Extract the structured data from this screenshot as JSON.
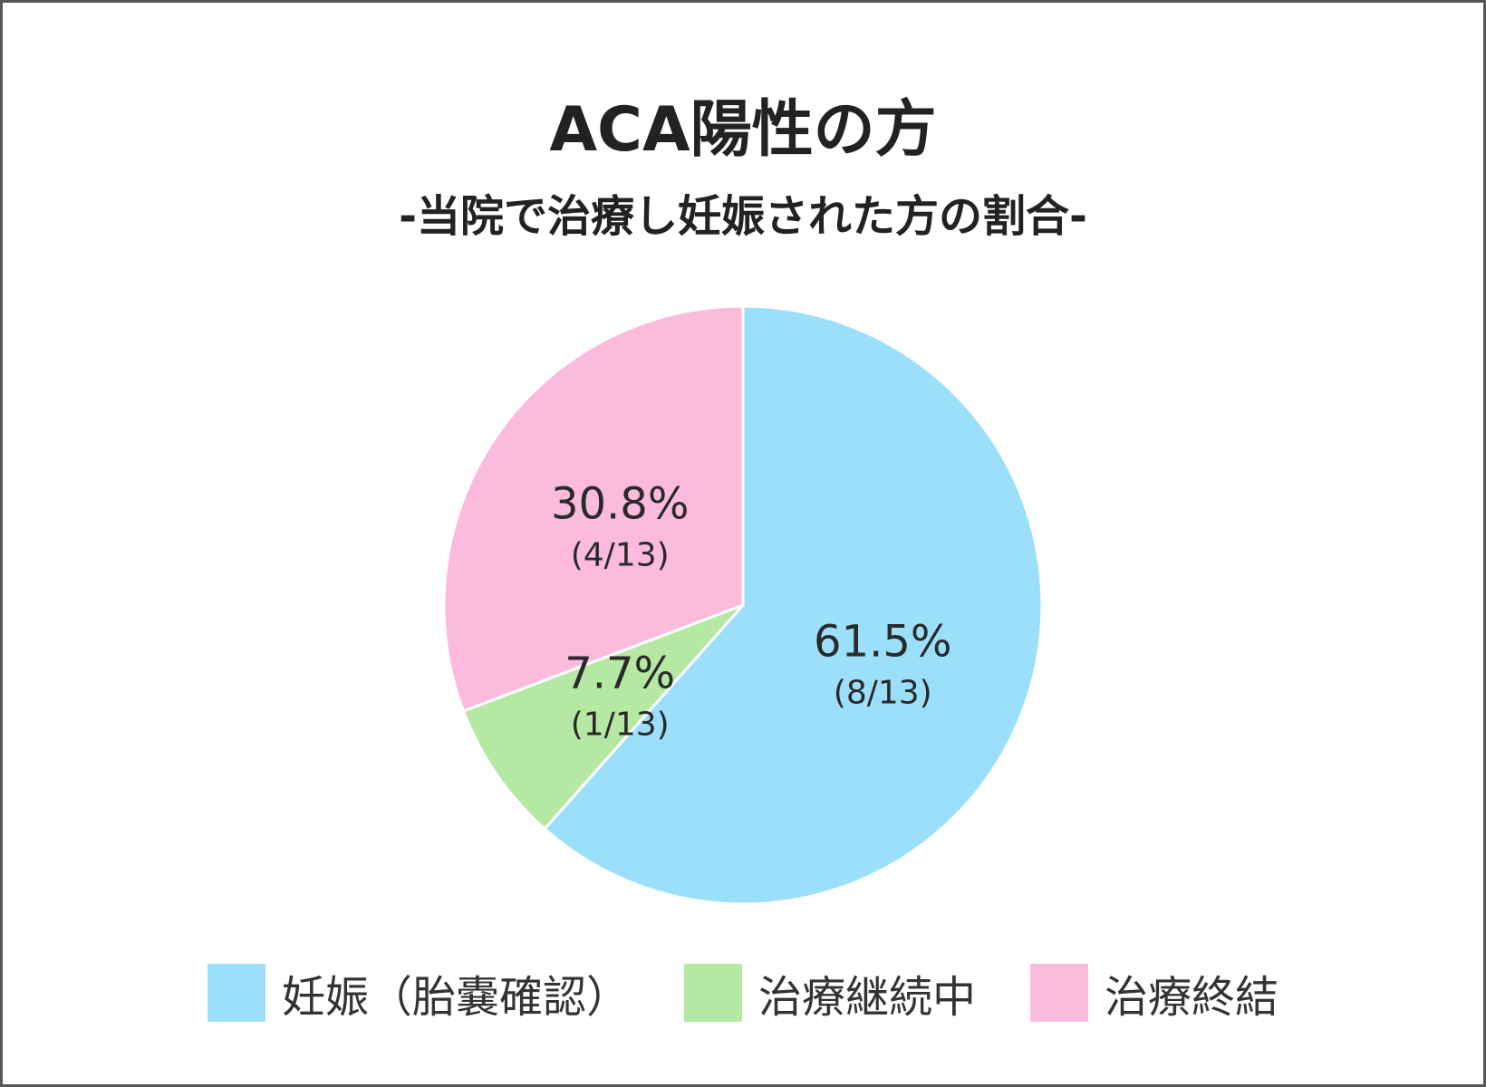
{
  "chart_data": {
    "type": "pie",
    "title": "ACA陽性の方",
    "subtitle": "-当院で治療し妊娠された方の割合-",
    "slices": [
      {
        "label": "妊娠（胎嚢確認）",
        "value": 8,
        "percent_label": "61.5%",
        "count_label": "(8/13)",
        "color": "#9cdffb"
      },
      {
        "label": "治療継続中",
        "value": 1,
        "percent_label": "7.7%",
        "count_label": "(1/13)",
        "color": "#b5e8a2"
      },
      {
        "label": "治療終結",
        "value": 4,
        "percent_label": "30.8%",
        "count_label": "(4/13)",
        "color": "#fcbbdc"
      }
    ],
    "total": 13,
    "legend_position": "bottom"
  }
}
